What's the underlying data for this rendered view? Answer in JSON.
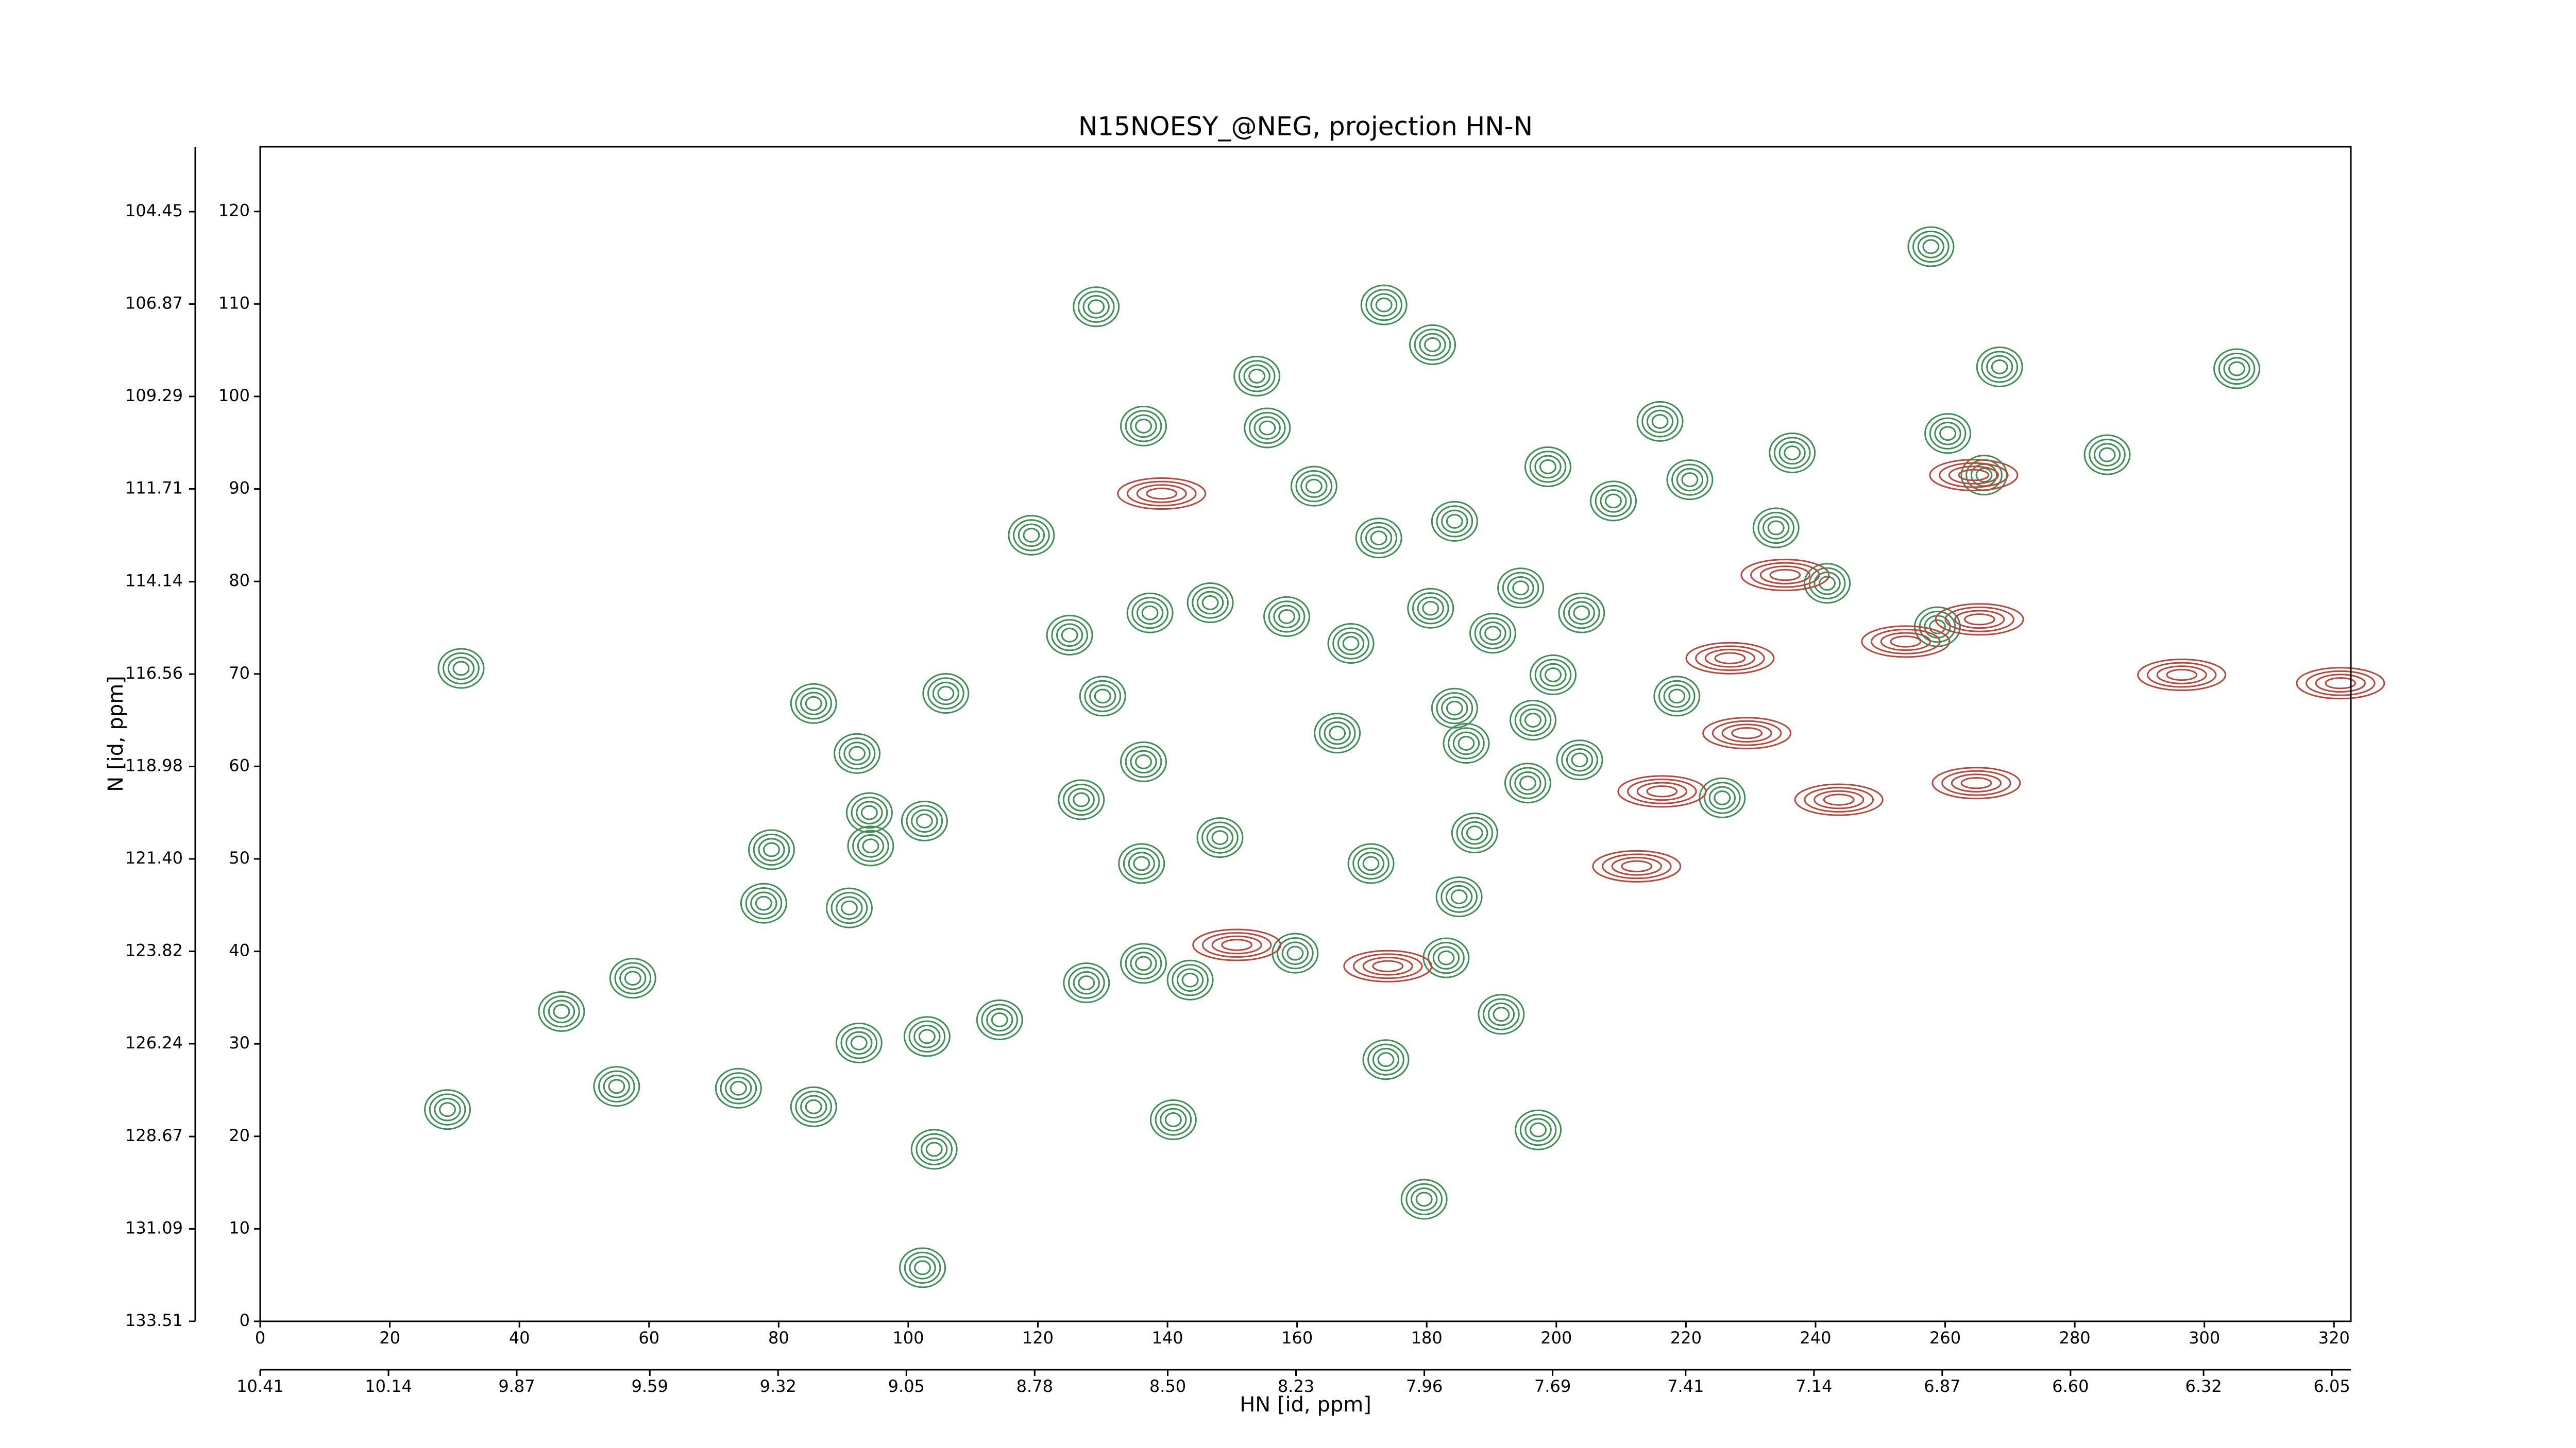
{
  "chart_data": {
    "type": "contour",
    "title": "N15NOESY_@NEG, projection HN-N",
    "x_label": "HN [id, ppm]",
    "y_label": "N [id, ppm]",
    "xlim": [
      0,
      322.6
    ],
    "xticks": [
      0,
      20,
      40,
      60,
      80,
      100,
      120,
      140,
      160,
      180,
      200,
      220,
      240,
      260,
      280,
      300,
      320
    ],
    "ylim": [
      0,
      127
    ],
    "yticks": [
      0,
      10,
      20,
      30,
      40,
      50,
      60,
      70,
      80,
      90,
      100,
      110,
      120
    ],
    "x2lim": [
      10.41,
      6.01
    ],
    "x2ticks": [
      10.41,
      10.14,
      9.87,
      9.59,
      9.32,
      9.05,
      8.78,
      {
        "value": 8.5,
        "label": "8.50"
      },
      8.23,
      7.96,
      7.69,
      7.41,
      7.14,
      6.87,
      {
        "value": 6.6,
        "label": "6.60"
      },
      6.32,
      6.05
    ],
    "y2lim": [
      133.51,
      102.75
    ],
    "y2ticks": [
      133.51,
      131.09,
      128.67,
      126.24,
      123.82,
      {
        "value": 121.4,
        "label": "121.40"
      },
      118.98,
      116.56,
      114.14,
      111.71,
      109.29,
      106.87,
      104.45
    ],
    "series": [
      {
        "color": "#3f8c57",
        "x": [
          257.8,
          129,
          173.4,
          180.9,
          268.4,
          305,
          153.8,
          155.4,
          216,
          136.3,
          198.7,
          236.4,
          285,
          220.6,
          162.6,
          208.8,
          119,
          172.6,
          184.3,
          233.9,
          266,
          260.4,
          241.8,
          124.9,
          137.3,
          146.6,
          158.4,
          168.3,
          180.6,
          190.2,
          194.5,
          203.9,
          130,
          105.8,
          85.4,
          92.1,
          199.5,
          196.4,
          218.6,
          136.3,
          126.7,
          166.2,
          184.3,
          186.1,
          195.6,
          203.6,
          225.6,
          94,
          102.5,
          78.9,
          94.2,
          136,
          148.1,
          171.4,
          187.4,
          77.7,
          90.9,
          185,
          127.5,
          136.3,
          143.5,
          159.7,
          183,
          57.5,
          46.5,
          114.1,
          92.4,
          102.9,
          191.5,
          173.7,
          55,
          73.8,
          85.4,
          28.9,
          140.9,
          104,
          197.2,
          179.6,
          102.2,
          31,
          258.8
        ],
        "values": [
          116.2,
          109.7,
          109.9,
          105.6,
          103.2,
          103,
          102.2,
          96.6,
          97.3,
          96.8,
          92.4,
          93.9,
          93.7,
          91,
          90.3,
          88.7,
          85,
          84.7,
          86.5,
          85.8,
          91.5,
          96,
          79.8,
          74.2,
          76.6,
          77.7,
          76.2,
          73.3,
          77.1,
          74.4,
          79.3,
          76.6,
          67.6,
          67.9,
          66.8,
          61.4,
          69.9,
          65,
          67.6,
          60.5,
          56.4,
          63.6,
          66.3,
          62.5,
          58.2,
          60.7,
          56.6,
          55,
          54.1,
          51,
          51.4,
          49.5,
          52.3,
          49.5,
          52.8,
          45.2,
          44.7,
          45.9,
          36.6,
          38.7,
          36.9,
          39.8,
          39.3,
          37.1,
          33.5,
          32.6,
          30.1,
          30.8,
          33.2,
          28.3,
          25.4,
          25.2,
          23.2,
          22.9,
          21.8,
          18.6,
          20.7,
          13.2,
          5.8,
          70.6,
          75.1
        ]
      },
      {
        "color": "#b5473c",
        "x": [
          253.9,
          226.8,
          265.3,
          296.5,
          321,
          216.3,
          174,
          150.7,
          235.3,
          264.4,
          139.1,
          264.8,
          229.4,
          243.6,
          212.4
        ],
        "values": [
          73.5,
          71.7,
          75.9,
          69.9,
          69,
          57.3,
          38.4,
          40.7,
          80.7,
          91.5,
          89.5,
          58.2,
          63.6,
          56.4,
          49.2
        ]
      }
    ]
  }
}
